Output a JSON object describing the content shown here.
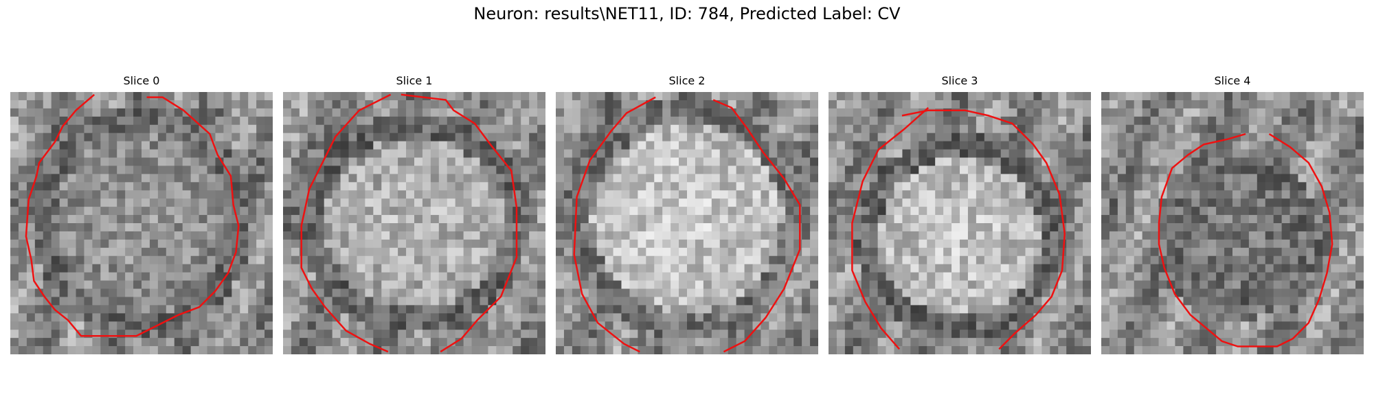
{
  "figure": {
    "suptitle": "Neuron: results\\NET11, ID: 784, Predicted Label: CV",
    "contour_color": "#ee1111",
    "colormap": "grayscale"
  },
  "slices": [
    {
      "title": "Slice 0"
    },
    {
      "title": "Slice 1"
    },
    {
      "title": "Slice 2"
    },
    {
      "title": "Slice 3"
    },
    {
      "title": "Slice 4"
    }
  ]
}
